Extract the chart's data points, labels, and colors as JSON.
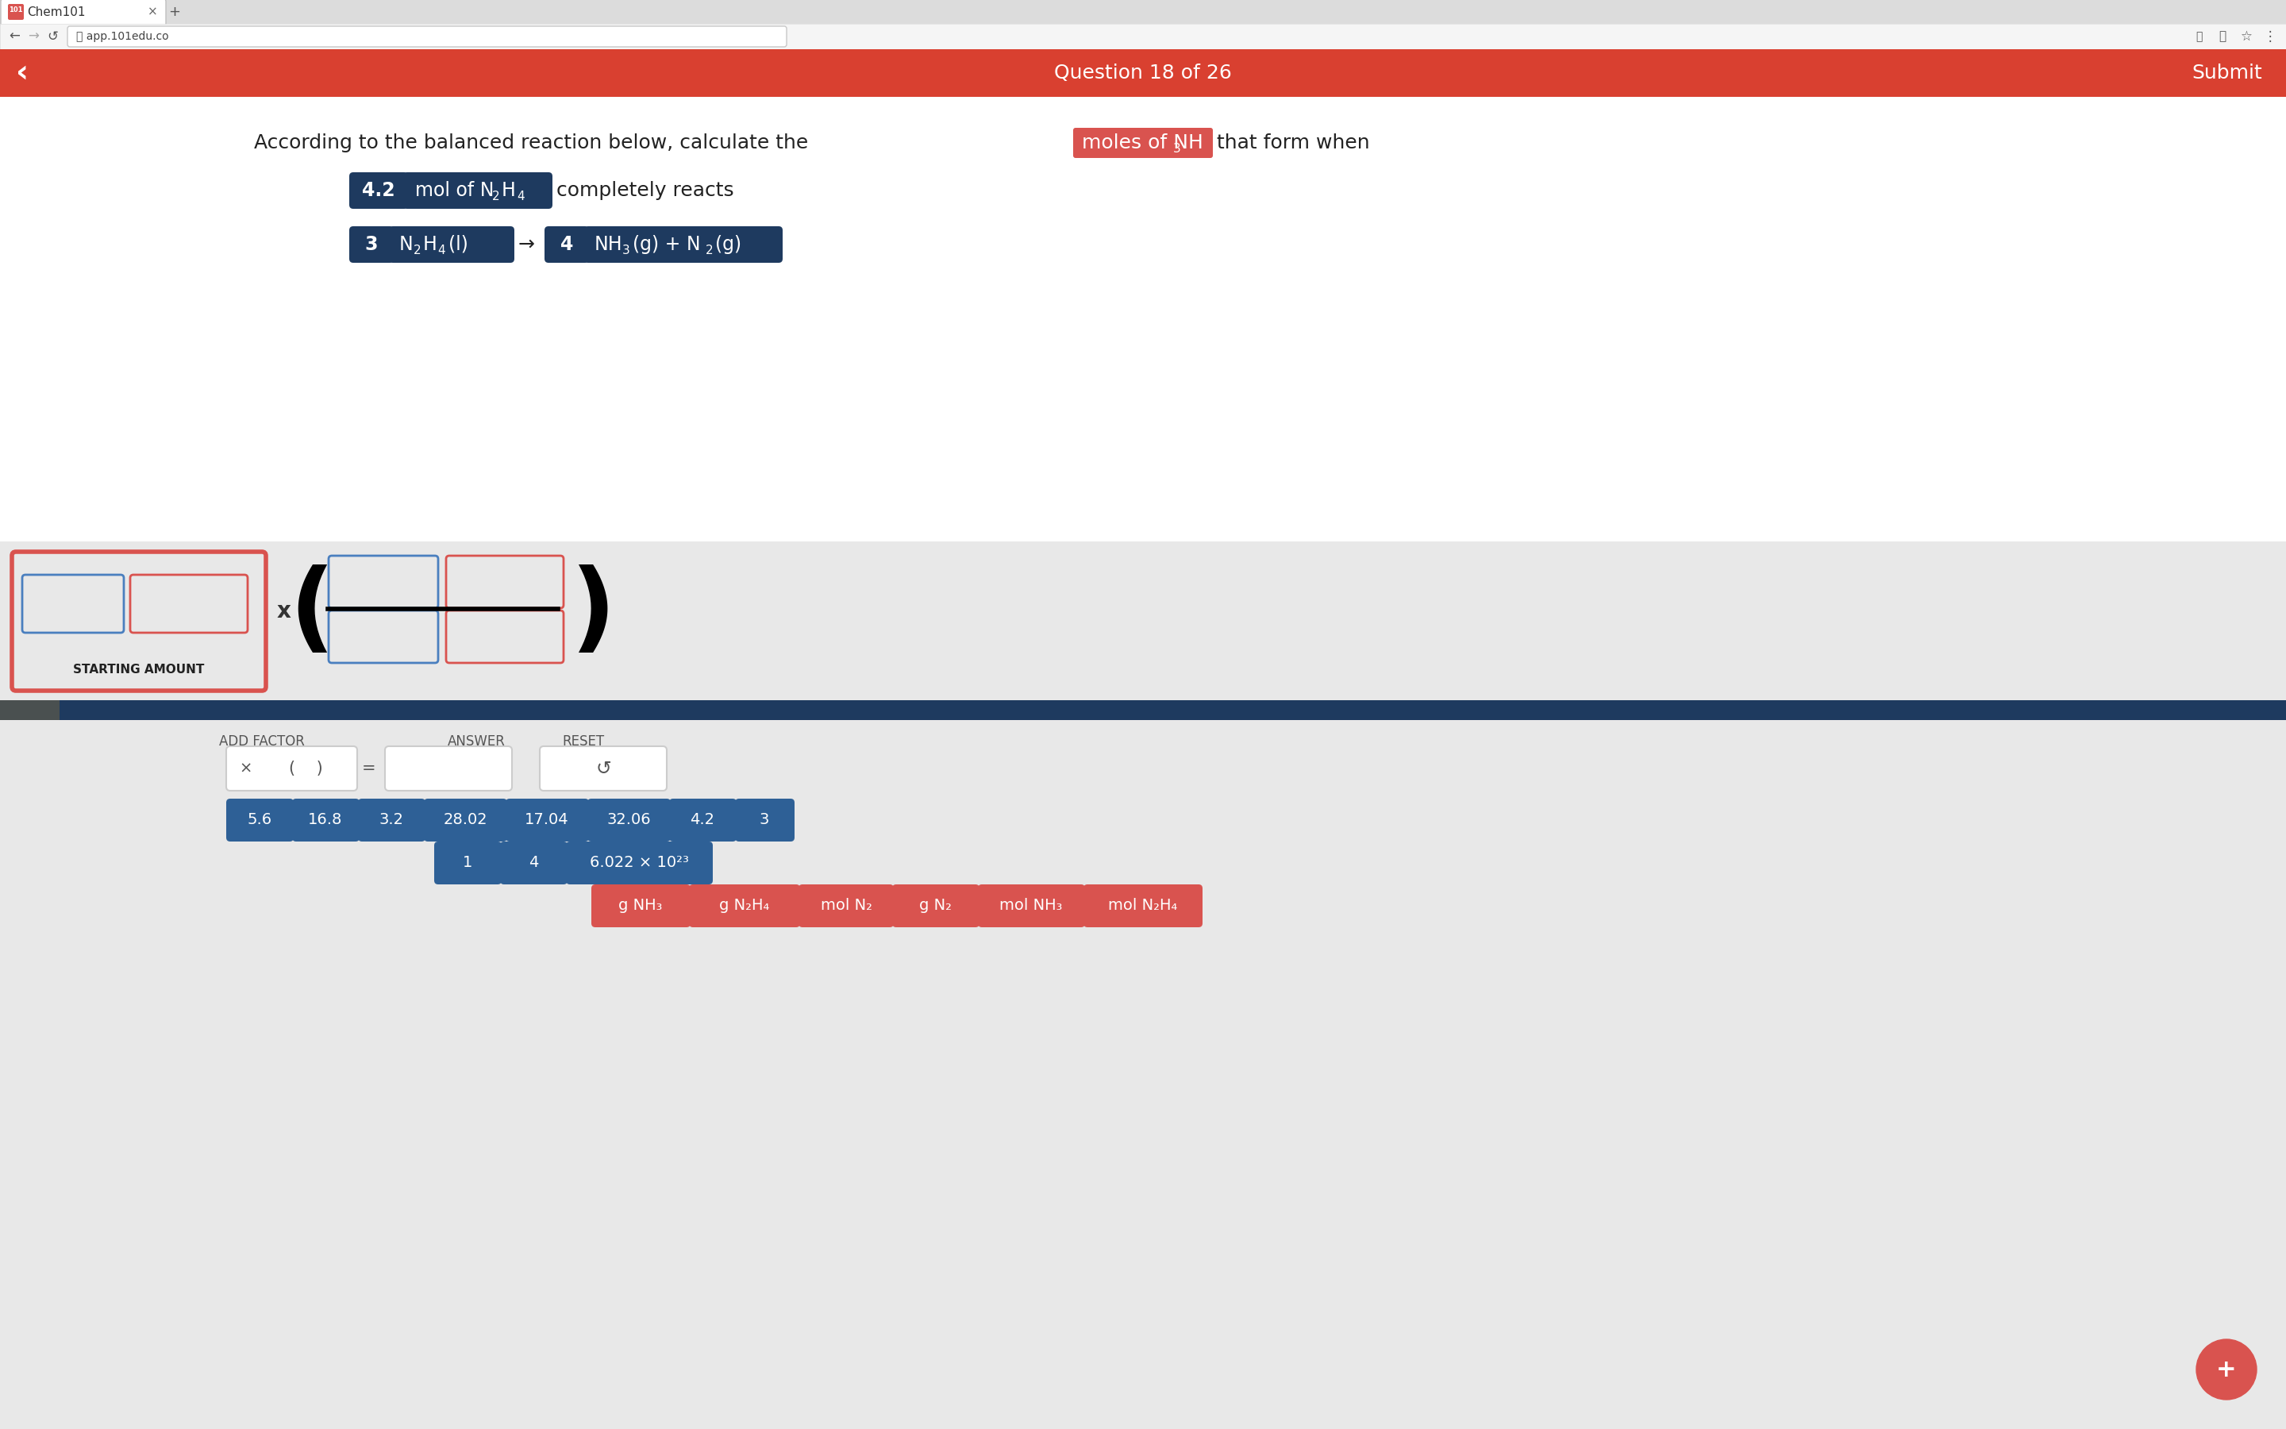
{
  "bg_color": "#f0f0f0",
  "white_bg": "#ffffff",
  "red_color": "#d9534f",
  "dark_red": "#c0392b",
  "dark_blue": "#1e3a5f",
  "mid_blue": "#2e6096",
  "blue_border": "#4a7fbf",
  "light_gray": "#e8e8e8",
  "header_red": "#d94030",
  "tab_bar_color": "#dcdcdc",
  "addr_bar_color": "#f5f5f5",
  "question_text": "According to the balanced reaction below, calculate the",
  "end_text": "that form when",
  "completely_reacts": "completely reacts",
  "arrow": "→",
  "starting_amount_label": "STARTING AMOUNT",
  "add_factor_label": "ADD FACTOR",
  "answer_label": "ANSWER",
  "reset_label": "RESET",
  "multiply_sign": "x",
  "num_buttons": [
    "5.6",
    "16.8",
    "3.2",
    "28.02",
    "17.04",
    "32.06",
    "4.2",
    "3"
  ],
  "num_buttons2": [
    "1",
    "4",
    "6.022 × 10²³"
  ],
  "label_buttons_red": [
    "g NH₃",
    "g N₂H₄",
    "mol N₂",
    "g N₂",
    "mol NH₃",
    "mol N₂H₄"
  ],
  "browser_tab_text": "Chem101",
  "url_text": "app.101edu.co",
  "question_num": "Question 18 of 26",
  "submit_text": "Submit",
  "plus_btn": "+"
}
